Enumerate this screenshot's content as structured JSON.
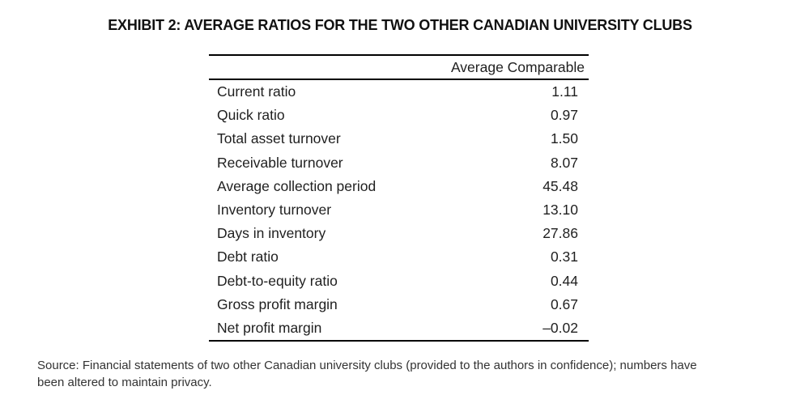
{
  "title": "EXHIBIT 2: AVERAGE RATIOS FOR THE TWO OTHER CANADIAN UNIVERSITY CLUBS",
  "table": {
    "header": "Average Comparable",
    "rows": [
      {
        "label": "Current ratio",
        "value": "1.11"
      },
      {
        "label": "Quick ratio",
        "value": "0.97"
      },
      {
        "label": "Total asset turnover",
        "value": "1.50"
      },
      {
        "label": "Receivable turnover",
        "value": "8.07"
      },
      {
        "label": "Average collection period",
        "value": "45.48"
      },
      {
        "label": "Inventory turnover",
        "value": "13.10"
      },
      {
        "label": "Days in inventory",
        "value": "27.86"
      },
      {
        "label": "Debt ratio",
        "value": "0.31"
      },
      {
        "label": "Debt-to-equity ratio",
        "value": "0.44"
      },
      {
        "label": "Gross profit margin",
        "value": "0.67"
      },
      {
        "label": "Net profit margin",
        "value": "–0.02"
      }
    ]
  },
  "source": {
    "line1": "Source: Financial statements of two other Canadian university clubs (provided to the authors in confidence); numbers have",
    "line2": "been altered to maintain privacy."
  },
  "colors": {
    "background": "#ffffff",
    "rule": "#000000",
    "text": "#1f1f1f",
    "source_text": "#333333"
  }
}
